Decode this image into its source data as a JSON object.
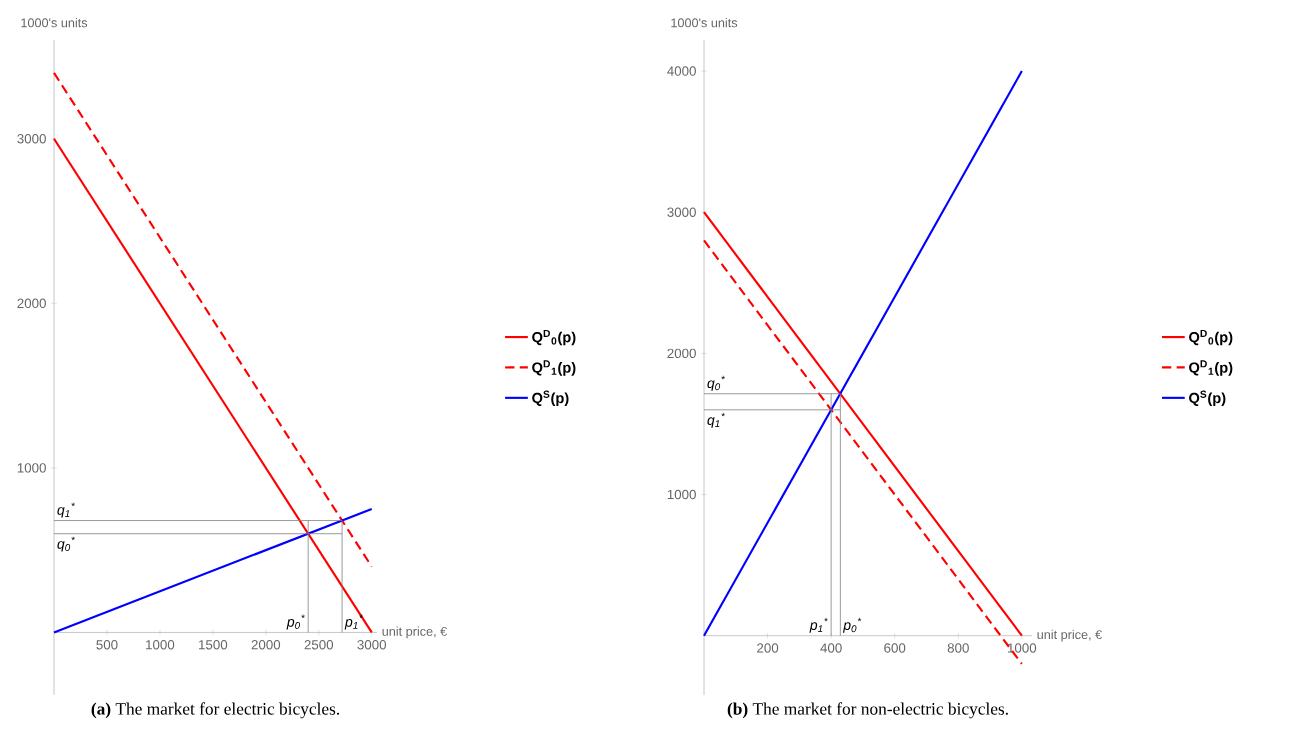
{
  "chart_data": [
    {
      "type": "line",
      "title": "**(a)** The market for electric bicycles.",
      "xlabel": "unit price, €",
      "ylabel": "1000's units",
      "xlim": [
        0,
        3050
      ],
      "ylim": [
        -380,
        3600
      ],
      "xticks": [
        500,
        1000,
        1500,
        2000,
        2500,
        3000
      ],
      "yticks": [
        1000,
        2000,
        3000
      ],
      "legend": "right",
      "series": [
        {
          "name": "Q$^{D}$$_{0}$(p)",
          "color": "#ff0000",
          "x": [
            0,
            3000
          ],
          "values": [
            3000,
            0
          ]
        },
        {
          "name": "Q$^{D}$$_{1}$(p)",
          "color": "#ff0000",
          "line_style": "dashed",
          "x": [
            0,
            3000
          ],
          "values": [
            3400,
            400
          ]
        },
        {
          "name": "Q$^{S}$(p)",
          "color": "#0000ff",
          "x": [
            0,
            3000
          ],
          "values": [
            0,
            750
          ]
        }
      ],
      "ref_lines": [
        {
          "axis": "y",
          "value": 600,
          "label": "q$_{0}$$^{*}$",
          "color": "#808080"
        },
        {
          "axis": "y",
          "value": 680,
          "label": "q$_{1}$$^{*}$",
          "color": "#808080"
        },
        {
          "axis": "x",
          "value": 2400,
          "label": "p$_{0}$$^{*}$",
          "color": "#808080"
        },
        {
          "axis": "x",
          "value": 2720,
          "label": "p$_{1}$$^{*}$",
          "color": "#808080"
        }
      ]
    },
    {
      "type": "line",
      "title": "**(b)** The market for non-electric bicycles.",
      "xlabel": "unit price, €",
      "ylabel": "1000's units",
      "xlim": [
        0,
        1032
      ],
      "ylim": [
        -420,
        4220
      ],
      "xticks": [
        200,
        400,
        600,
        800,
        1000
      ],
      "yticks": [
        1000,
        2000,
        3000,
        4000
      ],
      "legend": "right",
      "series": [
        {
          "name": "Q$^{D}$$_{0}$(p)",
          "color": "#ff0000",
          "x": [
            0,
            1000
          ],
          "values": [
            3000,
            0
          ]
        },
        {
          "name": "Q$^{D}$$_{1}$(p)",
          "color": "#ff0000",
          "line_style": "dashed",
          "x": [
            0,
            1000
          ],
          "values": [
            2800,
            -200
          ]
        },
        {
          "name": "Q$^{S}$(p)",
          "color": "#0000ff",
          "x": [
            0,
            1000
          ],
          "values": [
            0,
            4000
          ]
        }
      ],
      "ref_lines": [
        {
          "axis": "y",
          "value": 1714,
          "label": "q$_{0}$$^{*}$",
          "color": "#808080"
        },
        {
          "axis": "y",
          "value": 1600,
          "label": "q$_{1}$$^{*}$",
          "color": "#808080"
        },
        {
          "axis": "x",
          "value": 400,
          "label": "p$_{1}$$^{*}$",
          "color": "#808080"
        },
        {
          "axis": "x",
          "value": 429,
          "label": "p$_{0}$$^{*}$",
          "color": "#808080"
        }
      ]
    }
  ]
}
